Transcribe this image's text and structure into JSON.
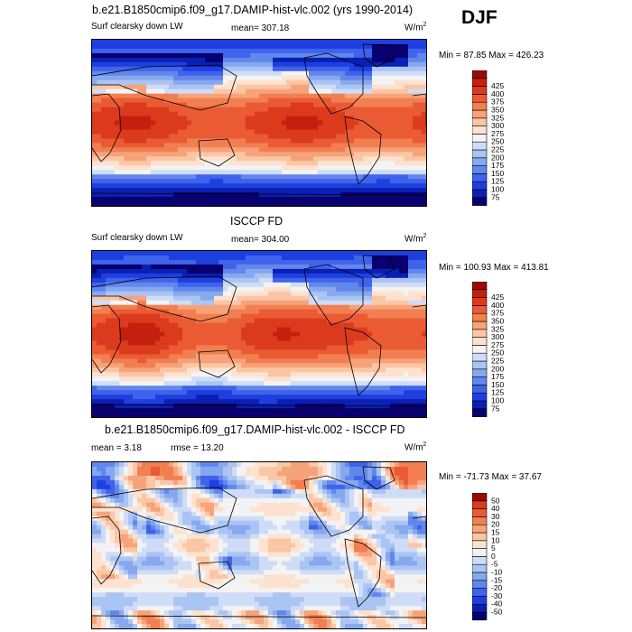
{
  "season": "DJF",
  "panels": [
    {
      "title": "b.e21.B1850cmip6.f09_g17.DAMIP-hist-vlc.002 (yrs 1990-2014)",
      "left_label": "Surf clearsky down LW",
      "center_label": "mean= 307.18",
      "units": "W/m",
      "units_sup": "2",
      "minmax": "Min =  87.85 Max = 426.23"
    },
    {
      "title": "ISCCP FD",
      "left_label": "Surf clearsky down LW",
      "center_label": "mean= 304.00",
      "units": "W/m",
      "units_sup": "2",
      "minmax": "Min = 100.93 Max = 413.81"
    },
    {
      "title": "b.e21.B1850cmip6.f09_g17.DAMIP-hist-vlc.002 - ISCCP FD",
      "left_label": "mean =   3.18",
      "center_label": "rmse =  13.20",
      "units": "W/m",
      "units_sup": "2",
      "minmax": "Min = -71.73 Max =  37.67"
    }
  ],
  "colors": {
    "field_scale": [
      "#08006e",
      "#0a1fb4",
      "#1e3fe0",
      "#3f63ea",
      "#6287ec",
      "#86a8ef",
      "#aac4f3",
      "#cfdcf7",
      "#f3f3f3",
      "#fde2cf",
      "#fbc6a6",
      "#f7a37a",
      "#f27f52",
      "#ea5b33",
      "#dc3a1c",
      "#c5200f",
      "#9a0a06"
    ],
    "diff_scale": [
      "#08006e",
      "#0a1fb4",
      "#1e3fe0",
      "#3f63ea",
      "#6287ec",
      "#86a8ef",
      "#aac4f3",
      "#cfdcf7",
      "#f3f3f3",
      "#fde2cf",
      "#fbc6a6",
      "#f7a37a",
      "#f27f52",
      "#ea5b33",
      "#dc3a1c",
      "#9a0a06"
    ]
  },
  "chart_data": [
    {
      "type": "heatmap",
      "title": "b.e21.B1850cmip6.f09_g17.DAMIP-hist-vlc.002 (yrs 1990-2014)",
      "variable": "Surf clearsky down LW",
      "units": "W/m2",
      "mean": 307.18,
      "min": 87.85,
      "max": 426.23,
      "colorbar_levels": [
        75,
        100,
        125,
        150,
        175,
        200,
        225,
        250,
        275,
        300,
        325,
        350,
        375,
        400,
        425
      ]
    },
    {
      "type": "heatmap",
      "title": "ISCCP FD",
      "variable": "Surf clearsky down LW",
      "units": "W/m2",
      "mean": 304.0,
      "min": 100.93,
      "max": 413.81,
      "colorbar_levels": [
        75,
        100,
        125,
        150,
        175,
        200,
        225,
        250,
        275,
        300,
        325,
        350,
        375,
        400,
        425
      ]
    },
    {
      "type": "heatmap",
      "title": "b.e21.B1850cmip6.f09_g17.DAMIP-hist-vlc.002 - ISCCP FD",
      "units": "W/m2",
      "mean": 3.18,
      "rmse": 13.2,
      "min": -71.73,
      "max": 37.67,
      "colorbar_levels": [
        -50,
        -40,
        -30,
        -20,
        -15,
        -10,
        -5,
        0,
        5,
        10,
        15,
        20,
        30,
        40,
        50
      ]
    }
  ]
}
